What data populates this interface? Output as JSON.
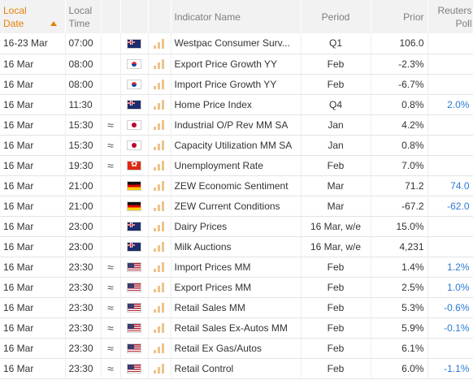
{
  "header": {
    "local_date": "Local Date",
    "local_time": "Local Time",
    "indicator_name": "Indicator Name",
    "period": "Period",
    "prior": "Prior",
    "reuters_poll": "Reuters Poll"
  },
  "colors": {
    "sorted_header": "#e5800d",
    "poll_value": "#2b7bd6",
    "importance_bars": "#f0c28a"
  },
  "rows": [
    {
      "date": "16-23 Mar",
      "time": "07:00",
      "approx": "",
      "flag": "au-flag-icon",
      "indicator": "Westpac Consumer Surv...",
      "period": "Q1",
      "prior": "106.0",
      "poll": ""
    },
    {
      "date": "16 Mar",
      "time": "08:00",
      "approx": "",
      "flag": "kr-flag-icon",
      "indicator": "Export Price Growth YY",
      "period": "Feb",
      "prior": "-2.3%",
      "poll": ""
    },
    {
      "date": "16 Mar",
      "time": "08:00",
      "approx": "",
      "flag": "kr-flag-icon",
      "indicator": "Import Price Growth YY",
      "period": "Feb",
      "prior": "-6.7%",
      "poll": ""
    },
    {
      "date": "16 Mar",
      "time": "11:30",
      "approx": "",
      "flag": "au-flag-icon",
      "indicator": "Home Price Index",
      "period": "Q4",
      "prior": "0.8%",
      "poll": "2.0%"
    },
    {
      "date": "16 Mar",
      "time": "15:30",
      "approx": "≈",
      "flag": "jp-flag-icon",
      "indicator": "Industrial O/P Rev MM SA",
      "period": "Jan",
      "prior": "4.2%",
      "poll": ""
    },
    {
      "date": "16 Mar",
      "time": "15:30",
      "approx": "≈",
      "flag": "jp-flag-icon",
      "indicator": "Capacity Utilization MM SA",
      "period": "Jan",
      "prior": "0.8%",
      "poll": ""
    },
    {
      "date": "16 Mar",
      "time": "19:30",
      "approx": "≈",
      "flag": "hk-flag-icon",
      "indicator": "Unemployment Rate",
      "period": "Feb",
      "prior": "7.0%",
      "poll": ""
    },
    {
      "date": "16 Mar",
      "time": "21:00",
      "approx": "",
      "flag": "de-flag-icon",
      "indicator": "ZEW Economic Sentiment",
      "period": "Mar",
      "prior": "71.2",
      "poll": "74.0"
    },
    {
      "date": "16 Mar",
      "time": "21:00",
      "approx": "",
      "flag": "de-flag-icon",
      "indicator": "ZEW Current Conditions",
      "period": "Mar",
      "prior": "-67.2",
      "poll": "-62.0"
    },
    {
      "date": "16 Mar",
      "time": "23:00",
      "approx": "",
      "flag": "nz-flag-icon",
      "indicator": "Dairy Prices",
      "period": "16 Mar, w/e",
      "prior": "15.0%",
      "poll": ""
    },
    {
      "date": "16 Mar",
      "time": "23:00",
      "approx": "",
      "flag": "nz-flag-icon",
      "indicator": "Milk Auctions",
      "period": "16 Mar, w/e",
      "prior": "4,231",
      "poll": ""
    },
    {
      "date": "16 Mar",
      "time": "23:30",
      "approx": "≈",
      "flag": "us-flag-icon",
      "indicator": "Import Prices MM",
      "period": "Feb",
      "prior": "1.4%",
      "poll": "1.2%"
    },
    {
      "date": "16 Mar",
      "time": "23:30",
      "approx": "≈",
      "flag": "us-flag-icon",
      "indicator": "Export Prices MM",
      "period": "Feb",
      "prior": "2.5%",
      "poll": "1.0%"
    },
    {
      "date": "16 Mar",
      "time": "23:30",
      "approx": "≈",
      "flag": "us-flag-icon",
      "indicator": "Retail Sales MM",
      "period": "Feb",
      "prior": "5.3%",
      "poll": "-0.6%"
    },
    {
      "date": "16 Mar",
      "time": "23:30",
      "approx": "≈",
      "flag": "us-flag-icon",
      "indicator": "Retail Sales Ex-Autos MM",
      "period": "Feb",
      "prior": "5.9%",
      "poll": "-0.1%"
    },
    {
      "date": "16 Mar",
      "time": "23:30",
      "approx": "≈",
      "flag": "us-flag-icon",
      "indicator": "Retail Ex Gas/Autos",
      "period": "Feb",
      "prior": "6.1%",
      "poll": ""
    },
    {
      "date": "16 Mar",
      "time": "23:30",
      "approx": "≈",
      "flag": "us-flag-icon",
      "indicator": "Retail Control",
      "period": "Feb",
      "prior": "6.0%",
      "poll": "-1.1%"
    }
  ]
}
